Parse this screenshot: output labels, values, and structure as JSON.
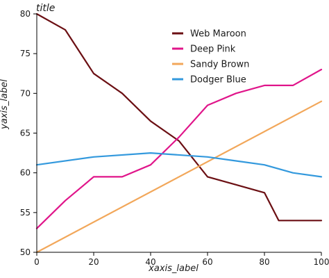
{
  "chart_data": {
    "type": "line",
    "title": "title",
    "xlabel": "xaxis_label",
    "ylabel": "yaxis_label",
    "xlim": [
      0,
      100
    ],
    "ylim": [
      50,
      80
    ],
    "x_ticks": [
      0,
      20,
      40,
      60,
      80,
      100
    ],
    "y_ticks": [
      50,
      55,
      60,
      65,
      70,
      75,
      80
    ],
    "legend_position": "top-center",
    "grid": false,
    "series": [
      {
        "name": "Web Maroon",
        "color": "#6b0f13",
        "points": [
          [
            0,
            80
          ],
          [
            10,
            78
          ],
          [
            20,
            72.5
          ],
          [
            30,
            70
          ],
          [
            40,
            66.5
          ],
          [
            50,
            64
          ],
          [
            60,
            59.5
          ],
          [
            70,
            58.5
          ],
          [
            80,
            57.5
          ],
          [
            85,
            54
          ],
          [
            100,
            54
          ]
        ]
      },
      {
        "name": "Deep Pink",
        "color": "#e0158a",
        "points": [
          [
            0,
            53
          ],
          [
            10,
            56.5
          ],
          [
            20,
            59.5
          ],
          [
            30,
            59.5
          ],
          [
            40,
            61
          ],
          [
            50,
            64.5
          ],
          [
            60,
            68.5
          ],
          [
            70,
            70
          ],
          [
            80,
            71
          ],
          [
            90,
            71
          ],
          [
            100,
            73
          ]
        ]
      },
      {
        "name": "Sandy Brown",
        "color": "#f2a75a",
        "points": [
          [
            0,
            50
          ],
          [
            100,
            69
          ]
        ]
      },
      {
        "name": "Dodger Blue",
        "color": "#3399dd",
        "points": [
          [
            0,
            61
          ],
          [
            20,
            62
          ],
          [
            40,
            62.5
          ],
          [
            60,
            62
          ],
          [
            70,
            61.5
          ],
          [
            80,
            61
          ],
          [
            90,
            60
          ],
          [
            100,
            59.5
          ]
        ]
      }
    ]
  }
}
